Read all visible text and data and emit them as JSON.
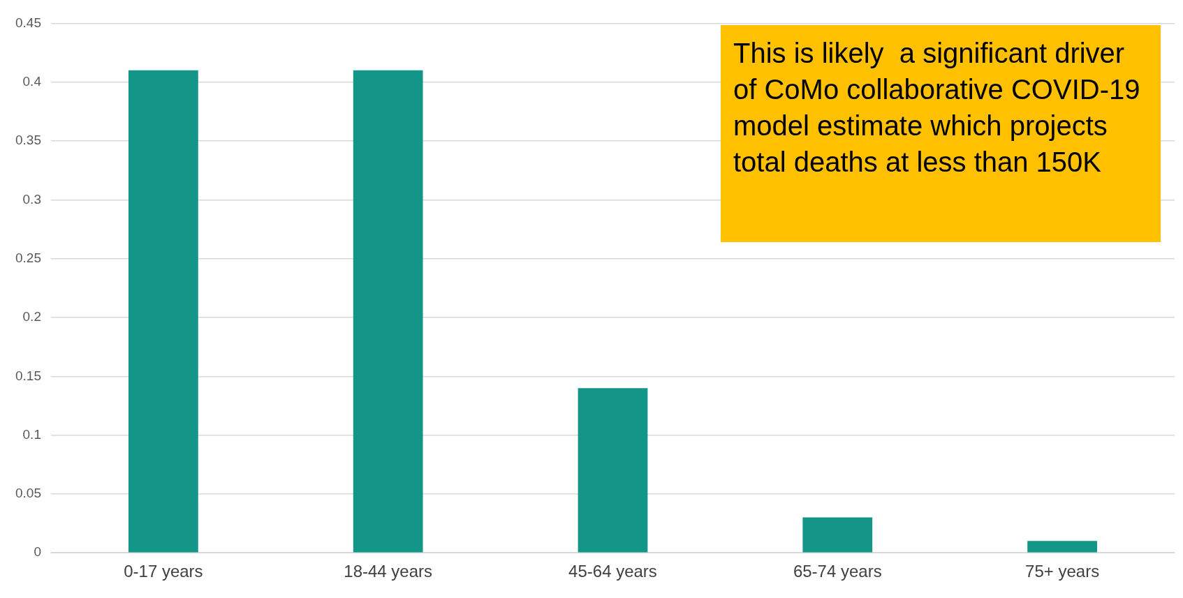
{
  "chart_data": {
    "type": "bar",
    "categories": [
      "0-17 years",
      "18-44 years",
      "45-64 years",
      "65-74 years",
      "75+ years"
    ],
    "values": [
      0.41,
      0.41,
      0.14,
      0.03,
      0.01
    ],
    "color": "#139688",
    "ylim": [
      0,
      0.45
    ],
    "yticks": [
      0,
      0.05,
      0.1,
      0.15,
      0.2,
      0.25,
      0.3,
      0.35,
      0.4,
      0.45
    ],
    "grid": "y",
    "annotations": [
      "This is likely  a significant driver of CoMo collaborative COVID-19 model estimate which projects total deaths at less than 150K"
    ]
  }
}
